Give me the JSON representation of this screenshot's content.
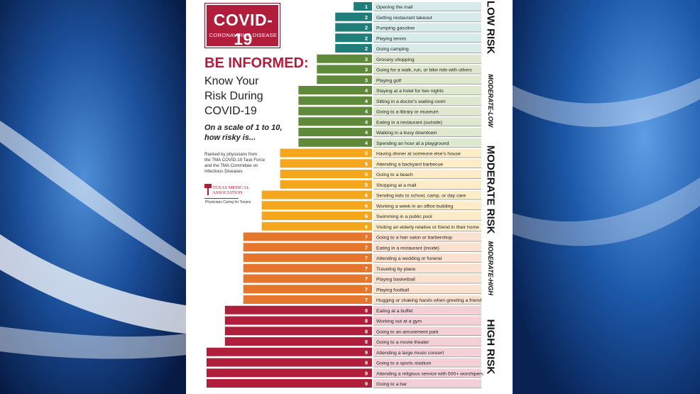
{
  "poster": {
    "covid_title": "COVID-19",
    "covid_subtitle": "CORONAVIRUS DISEASE",
    "headline": "BE INFORMED:",
    "know_lines": [
      "Know Your",
      "Risk During",
      "COVID-19"
    ],
    "scale_lines": [
      "On a scale of 1 to 10,",
      "how risky is..."
    ],
    "ranked_lines": [
      "Ranked by physicians from",
      "the TMA COVID-19 Task Force",
      "and the TMA Committee on",
      "Infectious Diseases"
    ],
    "tma_name_lines": [
      "TEXAS MEDICAL",
      "ASSOCIATION"
    ],
    "tma_tagline": "Physicians Caring for Texans"
  },
  "colors": {
    "bar_1_2": "#1f7e7a",
    "bar_3_4": "#5f8a3a",
    "bar_5_6": "#f4a71d",
    "bar_7": "#e5762b",
    "bar_8_9": "#b01e3c",
    "band_low": "#d6ebea",
    "band_moderate_low": "#dde8cf",
    "band_moderate": "#fcedc8",
    "band_moderate_high": "#fbe1cf",
    "band_high": "#f2d0d6"
  },
  "chart_data": {
    "type": "bar",
    "orientation": "horizontal",
    "x_range": [
      0,
      9
    ],
    "categories": [
      "Opening the mail",
      "Getting restaurant takeout",
      "Pumping gasoline",
      "Playing tennis",
      "Going camping",
      "Grocery shopping",
      "Going for a walk, run, or bike ride with others",
      "Playing golf",
      "Staying at a hotel for two nights",
      "Sitting in a doctor's waiting room",
      "Going to a library or museum",
      "Eating in a restaurant (outside)",
      "Walking in a busy downtown",
      "Spending an hour at a playground",
      "Having dinner at someone else's house",
      "Attending a backyard barbecue",
      "Going to a beach",
      "Shopping at a mall",
      "Sending kids to school, camp, or day care",
      "Working a week in an office building",
      "Swimming in a public pool",
      "Visiting an elderly relative or friend in their home",
      "Going to a hair salon or barbershop",
      "Eating in a restaurant (inside)",
      "Attending a wedding or funeral",
      "Traveling by plane",
      "Playing basketball",
      "Playing football",
      "Hugging or shaking hands when greeting a friend",
      "Eating at a buffet",
      "Working out at a gym",
      "Going to an amusement park",
      "Going to a movie theater",
      "Attending a large music concert",
      "Going to a sports stadium",
      "Attending a religious service with 500+ worshipers",
      "Going to a bar"
    ],
    "values": [
      1,
      2,
      2,
      2,
      2,
      3,
      3,
      3,
      4,
      4,
      4,
      4,
      4,
      4,
      5,
      5,
      5,
      5,
      6,
      6,
      6,
      6,
      7,
      7,
      7,
      7,
      7,
      7,
      7,
      8,
      8,
      8,
      8,
      9,
      9,
      9,
      9
    ],
    "risk_bands": [
      {
        "label": "LOW RISK",
        "min": 1,
        "max": 2
      },
      {
        "label": "MODERATE-LOW",
        "min": 3,
        "max": 4
      },
      {
        "label": "MODERATE RISK",
        "min": 5,
        "max": 6
      },
      {
        "label": "MODERATE-HIGH",
        "min": 7,
        "max": 7
      },
      {
        "label": "HIGH RISK",
        "min": 8,
        "max": 9
      }
    ]
  }
}
